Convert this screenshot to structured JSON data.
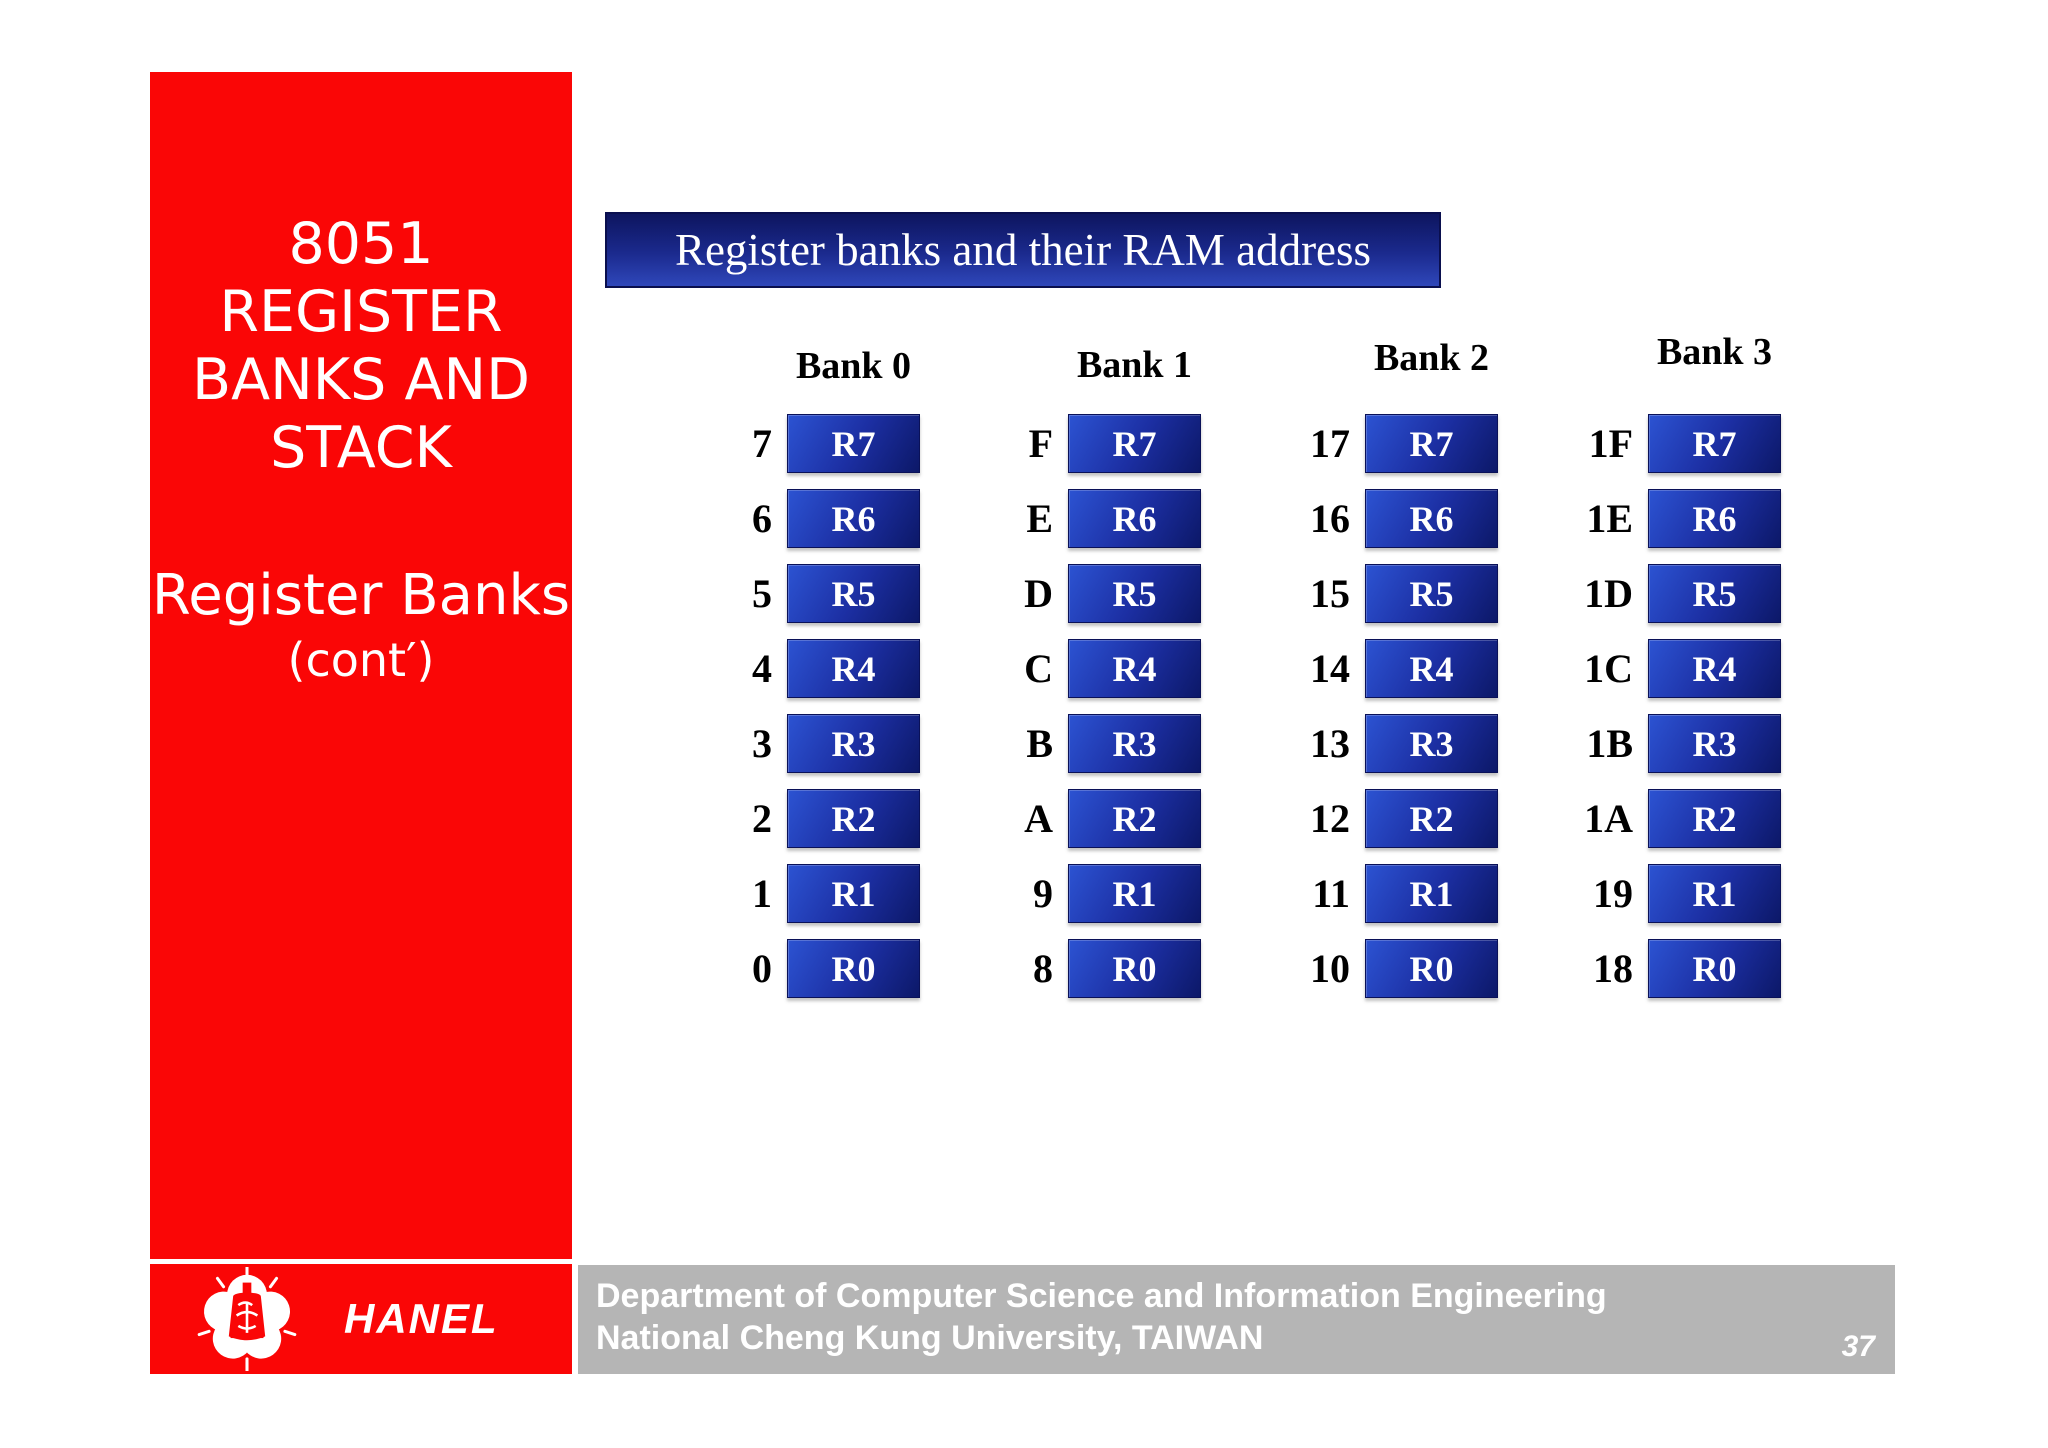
{
  "sidebar": {
    "title_lines": [
      "8051",
      "REGISTER",
      "BANKS AND",
      "STACK"
    ],
    "subtitle": "Register Banks",
    "subtitle2": "(cont′)"
  },
  "header": {
    "title": "Register banks and their RAM address"
  },
  "banks": [
    {
      "name": "Bank 0",
      "rows": [
        {
          "addr": "7",
          "reg": "R7"
        },
        {
          "addr": "6",
          "reg": "R6"
        },
        {
          "addr": "5",
          "reg": "R5"
        },
        {
          "addr": "4",
          "reg": "R4"
        },
        {
          "addr": "3",
          "reg": "R3"
        },
        {
          "addr": "2",
          "reg": "R2"
        },
        {
          "addr": "1",
          "reg": "R1"
        },
        {
          "addr": "0",
          "reg": "R0"
        }
      ]
    },
    {
      "name": "Bank 1",
      "rows": [
        {
          "addr": "F",
          "reg": "R7"
        },
        {
          "addr": "E",
          "reg": "R6"
        },
        {
          "addr": "D",
          "reg": "R5"
        },
        {
          "addr": "C",
          "reg": "R4"
        },
        {
          "addr": "B",
          "reg": "R3"
        },
        {
          "addr": "A",
          "reg": "R2"
        },
        {
          "addr": "9",
          "reg": "R1"
        },
        {
          "addr": "8",
          "reg": "R0"
        }
      ]
    },
    {
      "name": "Bank 2",
      "rows": [
        {
          "addr": "17",
          "reg": "R7"
        },
        {
          "addr": "16",
          "reg": "R6"
        },
        {
          "addr": "15",
          "reg": "R5"
        },
        {
          "addr": "14",
          "reg": "R4"
        },
        {
          "addr": "13",
          "reg": "R3"
        },
        {
          "addr": "12",
          "reg": "R2"
        },
        {
          "addr": "11",
          "reg": "R1"
        },
        {
          "addr": "10",
          "reg": "R0"
        }
      ]
    },
    {
      "name": "Bank 3",
      "rows": [
        {
          "addr": "1F",
          "reg": "R7"
        },
        {
          "addr": "1E",
          "reg": "R6"
        },
        {
          "addr": "1D",
          "reg": "R5"
        },
        {
          "addr": "1C",
          "reg": "R4"
        },
        {
          "addr": "1B",
          "reg": "R3"
        },
        {
          "addr": "1A",
          "reg": "R2"
        },
        {
          "addr": "19",
          "reg": "R1"
        },
        {
          "addr": "18",
          "reg": "R0"
        }
      ]
    }
  ],
  "footer": {
    "logo_text": "HANEL",
    "dept_line1": "Department of Computer Science and Information Engineering",
    "dept_line2": "National Cheng Kung University, TAIWAN",
    "page_number": "37"
  },
  "colors": {
    "sidebar_red": "#fa0606",
    "title_bar_blue_dark": "#0d155f",
    "title_bar_blue_light": "#2f47ba",
    "register_box_blue_light": "#2c53d2",
    "register_box_blue_dark": "#0c1868",
    "footer_gray": "#b5b5b5",
    "text_white": "#ffffff",
    "text_black": "#000000"
  }
}
